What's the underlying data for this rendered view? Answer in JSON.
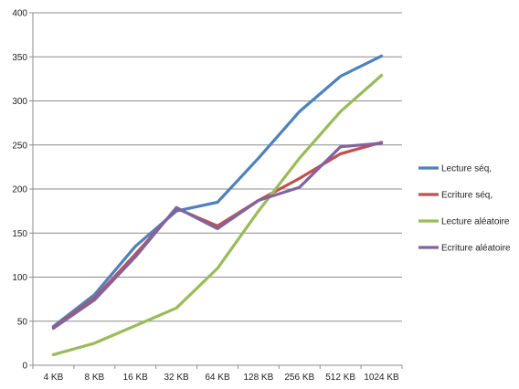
{
  "chart_data": {
    "type": "line",
    "title": "",
    "xlabel": "",
    "ylabel": "",
    "categories": [
      "4 KB",
      "8 KB",
      "16 KB",
      "32 KB",
      "64 KB",
      "128 KB",
      "256 KB",
      "512 KB",
      "1024 KB"
    ],
    "ylim": [
      0,
      400
    ],
    "yticks": [
      0,
      50,
      100,
      150,
      200,
      250,
      300,
      350,
      400
    ],
    "grid": true,
    "legend_position": "right",
    "series": [
      {
        "name": "Lecture séq,",
        "color": "#4F81BD",
        "values": [
          44,
          80,
          135,
          175,
          185,
          235,
          288,
          328,
          351
        ]
      },
      {
        "name": "Ecriture séq,",
        "color": "#C0504D",
        "values": [
          43,
          76,
          126,
          178,
          158,
          187,
          212,
          240,
          253
        ]
      },
      {
        "name": "Lecture aléatoire",
        "color": "#9BBB59",
        "values": [
          12,
          25,
          45,
          65,
          110,
          175,
          235,
          288,
          329
        ]
      },
      {
        "name": "Ecriture aléatoire",
        "color": "#8064A2",
        "values": [
          42,
          74,
          123,
          179,
          155,
          187,
          202,
          248,
          252
        ]
      }
    ]
  }
}
